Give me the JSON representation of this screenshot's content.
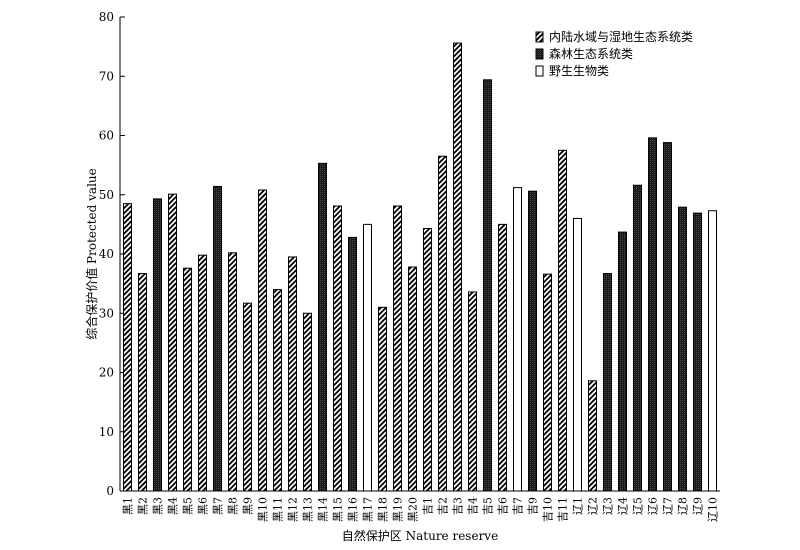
{
  "chart_data": {
    "type": "bar",
    "xlabel": "自然保护区 Nature reserve",
    "ylabel": "综合保护价值 Protected value",
    "ylim": [
      0,
      80
    ],
    "yticks": [
      0,
      10,
      20,
      30,
      40,
      50,
      60,
      70,
      80
    ],
    "grid": false,
    "legend_position": "top-right",
    "series_types": [
      {
        "key": "wetland",
        "name": "内陆水域与湿地生态系统类",
        "pattern": "diagonal-hatch"
      },
      {
        "key": "forest",
        "name": "森林生态系统类",
        "pattern": "dark-fill"
      },
      {
        "key": "wildlife",
        "name": "野生生物类",
        "pattern": "white-fill"
      }
    ],
    "categories": [
      "黑1",
      "黑2",
      "黑3",
      "黑4",
      "黑5",
      "黑6",
      "黑7",
      "黑8",
      "黑9",
      "黑10",
      "黑11",
      "黑12",
      "黑13",
      "黑14",
      "黑15",
      "黑16",
      "黑17",
      "黑18",
      "黑19",
      "黑20",
      "吉1",
      "吉2",
      "吉3",
      "吉4",
      "吉5",
      "吉6",
      "吉7",
      "吉9",
      "吉10",
      "吉11",
      "辽1",
      "辽2",
      "辽3",
      "辽4",
      "辽5",
      "辽6",
      "辽7",
      "辽8",
      "辽9",
      "辽10"
    ],
    "values": [
      48.5,
      36.7,
      49.3,
      50.1,
      37.6,
      39.8,
      51.4,
      40.2,
      31.7,
      50.8,
      34.0,
      39.5,
      30.0,
      55.3,
      48.1,
      42.8,
      45.0,
      31.0,
      48.1,
      37.8,
      44.3,
      56.5,
      75.6,
      33.6,
      69.4,
      45.0,
      51.2,
      50.6,
      36.6,
      57.5,
      46.0,
      18.6,
      36.7,
      43.7,
      51.6,
      59.6,
      58.8,
      47.9,
      46.9,
      47.3
    ],
    "types": [
      "wetland",
      "wetland",
      "forest",
      "wetland",
      "wetland",
      "wetland",
      "forest",
      "wetland",
      "wetland",
      "wetland",
      "wetland",
      "wetland",
      "wetland",
      "forest",
      "wetland",
      "forest",
      "wildlife",
      "wetland",
      "wetland",
      "wetland",
      "wetland",
      "wetland",
      "wetland",
      "wetland",
      "forest",
      "wetland",
      "wildlife",
      "forest",
      "wetland",
      "wetland",
      "wildlife",
      "wetland",
      "forest",
      "forest",
      "forest",
      "forest",
      "forest",
      "forest",
      "forest",
      "wildlife"
    ]
  }
}
